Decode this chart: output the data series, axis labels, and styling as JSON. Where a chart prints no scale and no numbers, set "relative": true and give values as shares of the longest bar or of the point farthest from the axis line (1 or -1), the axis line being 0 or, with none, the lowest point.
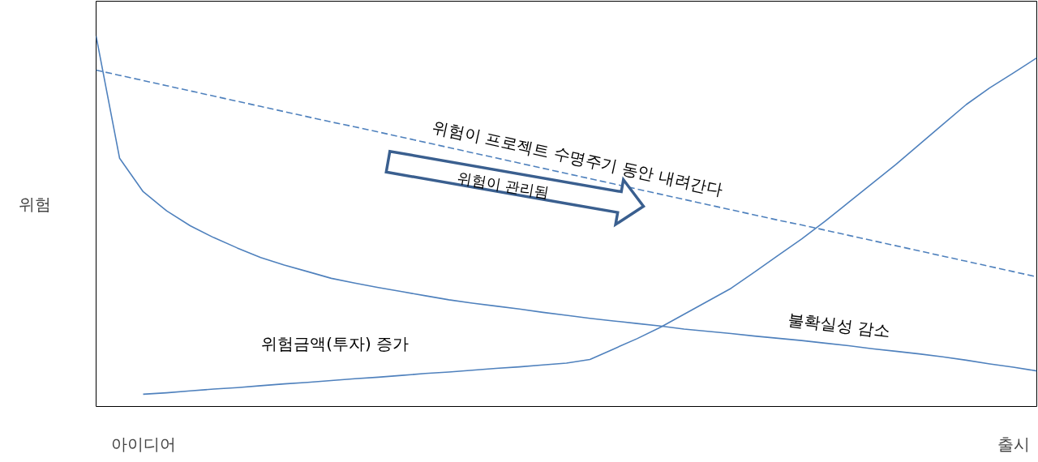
{
  "chart_data": {
    "type": "line",
    "relative": true,
    "ylabel": "위험",
    "categories": [
      null,
      null,
      "아이디어",
      null,
      null,
      null,
      null,
      null,
      null,
      null,
      null,
      null,
      null,
      null,
      null,
      null,
      null,
      null,
      null,
      null,
      null,
      null,
      null,
      null,
      null,
      null,
      null,
      null,
      null,
      null,
      null,
      null,
      null,
      null,
      null,
      null,
      null,
      null,
      null,
      "출시",
      null
    ],
    "grid": false,
    "marker": "none",
    "annotations": [
      "위험이 관리됨"
    ],
    "series": [
      {
        "name": "위험이 프로젝트 수명주기 동안 내려간다",
        "color": "#4f81bd",
        "line_style": "dashed",
        "values": [
          0.908,
          0.894,
          0.88,
          0.866,
          0.852,
          0.838,
          0.824,
          0.81,
          0.796,
          0.782,
          0.768,
          0.755,
          0.741,
          0.727,
          0.713,
          0.699,
          0.685,
          0.671,
          0.657,
          0.643,
          0.629,
          0.615,
          0.601,
          0.587,
          0.573,
          0.559,
          0.545,
          0.531,
          0.517,
          0.503,
          0.49,
          0.476,
          0.462,
          0.448,
          0.434,
          0.42,
          0.406,
          0.392,
          0.378,
          0.364,
          0.35
        ]
      },
      {
        "name": "불확실성 감소",
        "color": "#4f81bd",
        "line_style": "solid",
        "values": [
          1.0,
          0.67,
          0.58,
          0.528,
          0.488,
          0.456,
          0.428,
          0.402,
          0.382,
          0.364,
          0.346,
          0.333,
          0.321,
          0.31,
          0.299,
          0.288,
          0.279,
          0.271,
          0.263,
          0.254,
          0.246,
          0.238,
          0.231,
          0.224,
          0.217,
          0.209,
          0.203,
          0.197,
          0.19,
          0.184,
          0.178,
          0.171,
          0.164,
          0.156,
          0.149,
          0.142,
          0.134,
          0.125,
          0.115,
          0.106,
          0.096
        ]
      },
      {
        "name": "위험금액(투자) 증가",
        "color": "#4f81bd",
        "line_style": "solid",
        "values": [
          null,
          null,
          0.033,
          0.037,
          0.042,
          0.047,
          0.051,
          0.056,
          0.061,
          0.065,
          0.07,
          0.075,
          0.079,
          0.084,
          0.089,
          0.093,
          0.098,
          0.103,
          0.107,
          0.112,
          0.117,
          0.127,
          0.155,
          0.183,
          0.214,
          0.249,
          0.284,
          0.319,
          0.363,
          0.408,
          0.452,
          0.5,
          0.551,
          0.602,
          0.653,
          0.707,
          0.761,
          0.815,
          0.86,
          0.9,
          0.941
        ]
      }
    ]
  }
}
